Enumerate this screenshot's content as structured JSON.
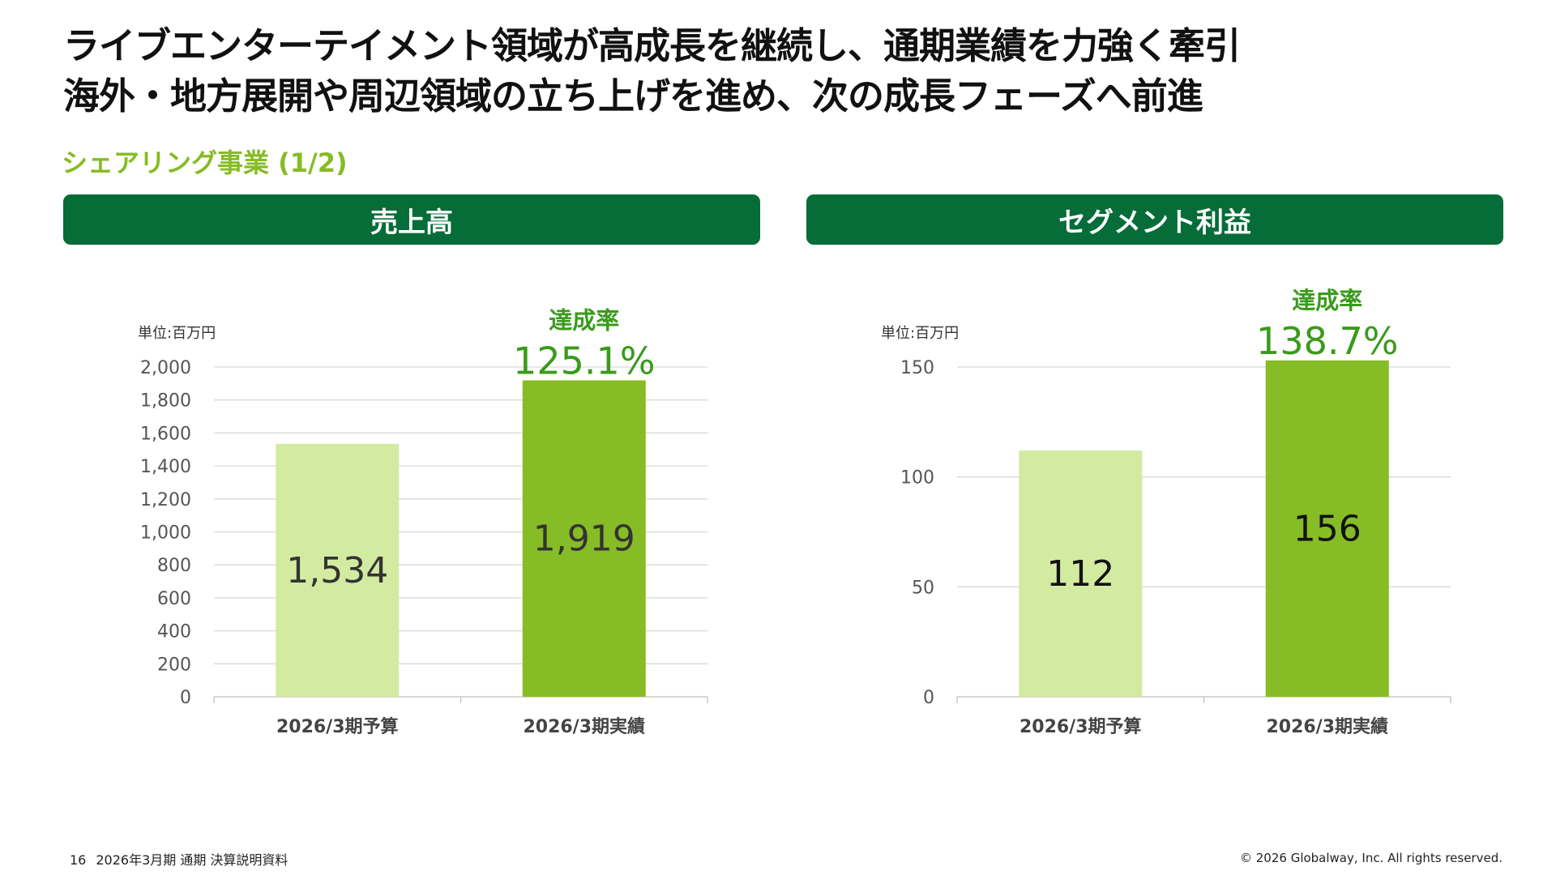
{
  "headline": {
    "line1": "ライブエンターテイメント領域が高成長を継続し、通期業績を力強く牽引",
    "line2": "海外・地方展開や周辺領域の立ち上げを進め、次の成長フェーズへ前進"
  },
  "section_title": "シェアリング事業 (1/2)",
  "colors": {
    "banner": "#066c38",
    "budget_bar": "#d3eba1",
    "actual_bar": "#86bc25",
    "accent_text": "#3a9a1c",
    "grid": "#d9d9d9"
  },
  "chart_data": [
    {
      "type": "bar",
      "title": "売上高",
      "unit_label": "単位:百万円",
      "categories": [
        "2026/3期予算",
        "2026/3期実績"
      ],
      "values": [
        1534,
        1919
      ],
      "value_labels": [
        "1,534",
        "1,919"
      ],
      "ylim": [
        0,
        2000
      ],
      "yticks": [
        "0",
        "200",
        "400",
        "600",
        "800",
        "1,000",
        "1,200",
        "1,400",
        "1,600",
        "1,800",
        "2,000"
      ],
      "grid": true,
      "annotation_label": "達成率",
      "annotation_value": "125.1%"
    },
    {
      "type": "bar",
      "title": "セグメント利益",
      "unit_label": "単位:百万円",
      "categories": [
        "2026/3期予算",
        "2026/3期実績"
      ],
      "values": [
        112,
        156
      ],
      "value_labels": [
        "112",
        "156"
      ],
      "ylim": [
        0,
        150
      ],
      "yticks": [
        "0",
        "50",
        "100",
        "150"
      ],
      "grid": true,
      "annotation_label": "達成率",
      "annotation_value": "138.7%"
    }
  ],
  "footer": {
    "page_number": "16",
    "doc_title": "2026年3月期 通期 決算説明資料",
    "copyright": "© 2026 Globalway, Inc. All rights reserved."
  }
}
